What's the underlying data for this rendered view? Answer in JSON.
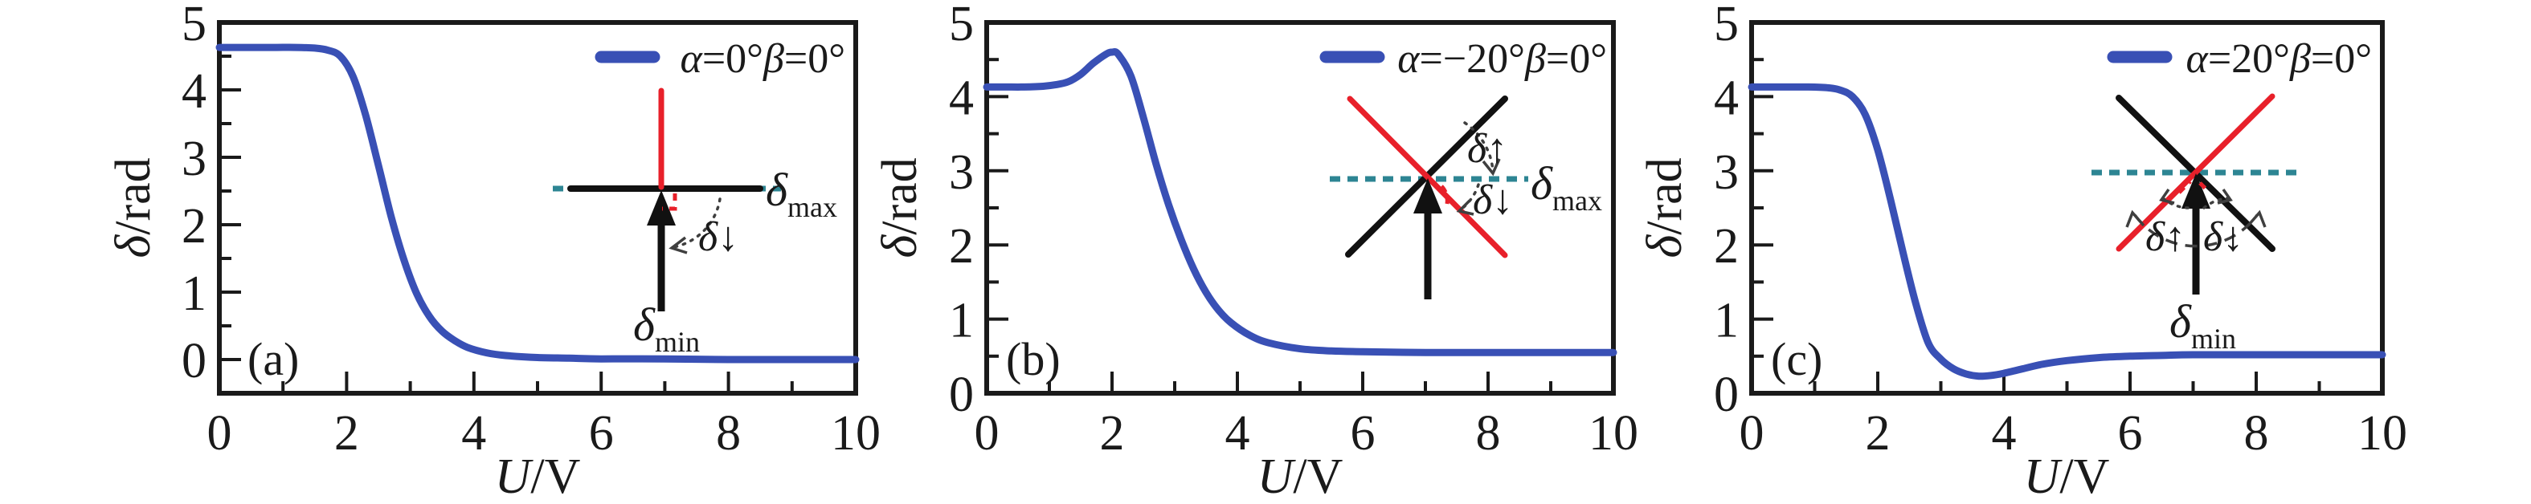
{
  "figure": {
    "background": "#ffffff",
    "colors": {
      "curve": "#3950b5",
      "inset_red": "#e8202a",
      "inset_teal_dashed": "#2d8593",
      "ink": "#1a1a1a"
    }
  },
  "chart_data": [
    {
      "type": "line",
      "panel_label": "(a)",
      "xlabel": "U/V",
      "xlabel_var": "U",
      "xlabel_unit": "/V",
      "ylabel": "δ/rad",
      "ylabel_var": "δ",
      "ylabel_unit": "/rad",
      "xlim": [
        0,
        10
      ],
      "ylim": [
        -0.5,
        5
      ],
      "x_major_ticks": [
        0,
        2,
        4,
        6,
        8,
        10
      ],
      "x_minor_ticks": [
        1,
        3,
        5,
        7,
        9
      ],
      "y_major_ticks": [
        0,
        1,
        2,
        3,
        4,
        5
      ],
      "y_minor_ticks": [
        0.5,
        1.5,
        2.5,
        3.5,
        4.5
      ],
      "grid": false,
      "legend": {
        "label": "α=0°β=0°",
        "position": "top-right",
        "parts": [
          {
            "t": "α",
            "it": true
          },
          {
            "t": "=0°",
            "it": false
          },
          {
            "t": "β",
            "it": true
          },
          {
            "t": "=0°",
            "it": false
          }
        ]
      },
      "series": [
        {
          "name": "α=0°β=0°",
          "color": "#3950b5",
          "x": [
            0,
            0.3,
            0.6,
            0.9,
            1.2,
            1.5,
            1.7,
            1.9,
            2.1,
            2.3,
            2.5,
            2.7,
            2.9,
            3.1,
            3.3,
            3.5,
            3.7,
            3.9,
            4.2,
            4.5,
            5,
            5.5,
            6,
            7,
            8,
            9,
            10
          ],
          "y": [
            4.63,
            4.63,
            4.63,
            4.63,
            4.63,
            4.62,
            4.59,
            4.5,
            4.2,
            3.62,
            2.88,
            2.12,
            1.48,
            0.98,
            0.64,
            0.42,
            0.28,
            0.18,
            0.1,
            0.06,
            0.03,
            0.02,
            0.01,
            0.01,
            0.0,
            0.0,
            0.0
          ]
        }
      ],
      "inset": {
        "diagram": "horizontal-black-line-with-vertical-red-line-and-up-arrow",
        "labels": {
          "delta_max_base": "δ",
          "delta_max_sub": "max",
          "delta_min_base": "δ",
          "delta_min_sub": "min",
          "delta_down": "δ↓"
        }
      }
    },
    {
      "type": "line",
      "panel_label": "(b)",
      "xlabel": "U/V",
      "xlabel_var": "U",
      "xlabel_unit": "/V",
      "ylabel": "δ/rad",
      "ylabel_var": "δ",
      "ylabel_unit": "/rad",
      "xlim": [
        0,
        10
      ],
      "ylim": [
        0,
        5
      ],
      "x_major_ticks": [
        0,
        2,
        4,
        6,
        8,
        10
      ],
      "x_minor_ticks": [
        1,
        3,
        5,
        7,
        9
      ],
      "y_major_ticks": [
        0,
        1,
        2,
        3,
        4,
        5
      ],
      "y_minor_ticks": [
        0.5,
        1.5,
        2.5,
        3.5,
        4.5
      ],
      "grid": false,
      "legend": {
        "label": "α=−20°β=0°",
        "position": "top-right",
        "parts": [
          {
            "t": "α",
            "it": true
          },
          {
            "t": "=−20°",
            "it": false
          },
          {
            "t": "β",
            "it": true
          },
          {
            "t": "=0°",
            "it": false
          }
        ]
      },
      "series": [
        {
          "name": "α=−20°β=0°",
          "color": "#3950b5",
          "x": [
            0,
            0.3,
            0.6,
            0.9,
            1.1,
            1.3,
            1.5,
            1.7,
            1.9,
            2.0,
            2.1,
            2.3,
            2.5,
            2.7,
            2.9,
            3.1,
            3.3,
            3.5,
            3.7,
            3.9,
            4.2,
            4.5,
            5,
            5.5,
            6,
            7,
            8,
            9,
            10
          ],
          "y": [
            4.13,
            4.13,
            4.13,
            4.14,
            4.16,
            4.2,
            4.3,
            4.45,
            4.57,
            4.6,
            4.57,
            4.28,
            3.72,
            3.1,
            2.55,
            2.08,
            1.68,
            1.36,
            1.12,
            0.95,
            0.78,
            0.68,
            0.6,
            0.57,
            0.56,
            0.55,
            0.55,
            0.55,
            0.55
          ]
        }
      ],
      "inset": {
        "diagram": "crossed-black-and-red-diagonal-lines-with-teal-dashed-horizontal-and-up-arrow",
        "labels": {
          "delta_max_base": "δ",
          "delta_max_sub": "max",
          "delta_up": "δ↑",
          "delta_down": "δ↓"
        }
      }
    },
    {
      "type": "line",
      "panel_label": "(c)",
      "xlabel": "U/V",
      "xlabel_var": "U",
      "xlabel_unit": "/V",
      "ylabel": "δ/rad",
      "ylabel_var": "δ",
      "ylabel_unit": "/rad",
      "xlim": [
        0,
        10
      ],
      "ylim": [
        0,
        5
      ],
      "x_major_ticks": [
        0,
        2,
        4,
        6,
        8,
        10
      ],
      "x_minor_ticks": [
        1,
        3,
        5,
        7,
        9
      ],
      "y_major_ticks": [
        0,
        1,
        2,
        3,
        4,
        5
      ],
      "y_minor_ticks": [
        0.5,
        1.5,
        2.5,
        3.5,
        4.5
      ],
      "grid": false,
      "legend": {
        "label": "α=20°β=0°",
        "position": "top-right",
        "parts": [
          {
            "t": "α",
            "it": true
          },
          {
            "t": "=20°",
            "it": false
          },
          {
            "t": "β",
            "it": true
          },
          {
            "t": "=0°",
            "it": false
          }
        ]
      },
      "series": [
        {
          "name": "α=20°β=0°",
          "color": "#3950b5",
          "x": [
            0,
            0.3,
            0.6,
            0.9,
            1.2,
            1.4,
            1.6,
            1.8,
            2.0,
            2.2,
            2.4,
            2.6,
            2.8,
            3.0,
            3.2,
            3.4,
            3.6,
            3.8,
            4.0,
            4.3,
            4.6,
            5.0,
            5.5,
            6.0,
            6.5,
            7,
            8,
            9,
            10
          ],
          "y": [
            4.13,
            4.13,
            4.13,
            4.13,
            4.12,
            4.09,
            4.0,
            3.76,
            3.28,
            2.62,
            1.9,
            1.22,
            0.68,
            0.46,
            0.33,
            0.26,
            0.23,
            0.24,
            0.27,
            0.33,
            0.39,
            0.44,
            0.48,
            0.5,
            0.51,
            0.52,
            0.52,
            0.52,
            0.52
          ]
        }
      ],
      "inset": {
        "diagram": "mirrored-crossed-black-and-red-diagonal-lines-with-teal-dashed-horizontal-and-long-up-arrow",
        "labels": {
          "delta_min_base": "δ",
          "delta_min_sub": "min",
          "delta_up": "δ↑",
          "delta_down": "δ↓"
        }
      }
    }
  ]
}
